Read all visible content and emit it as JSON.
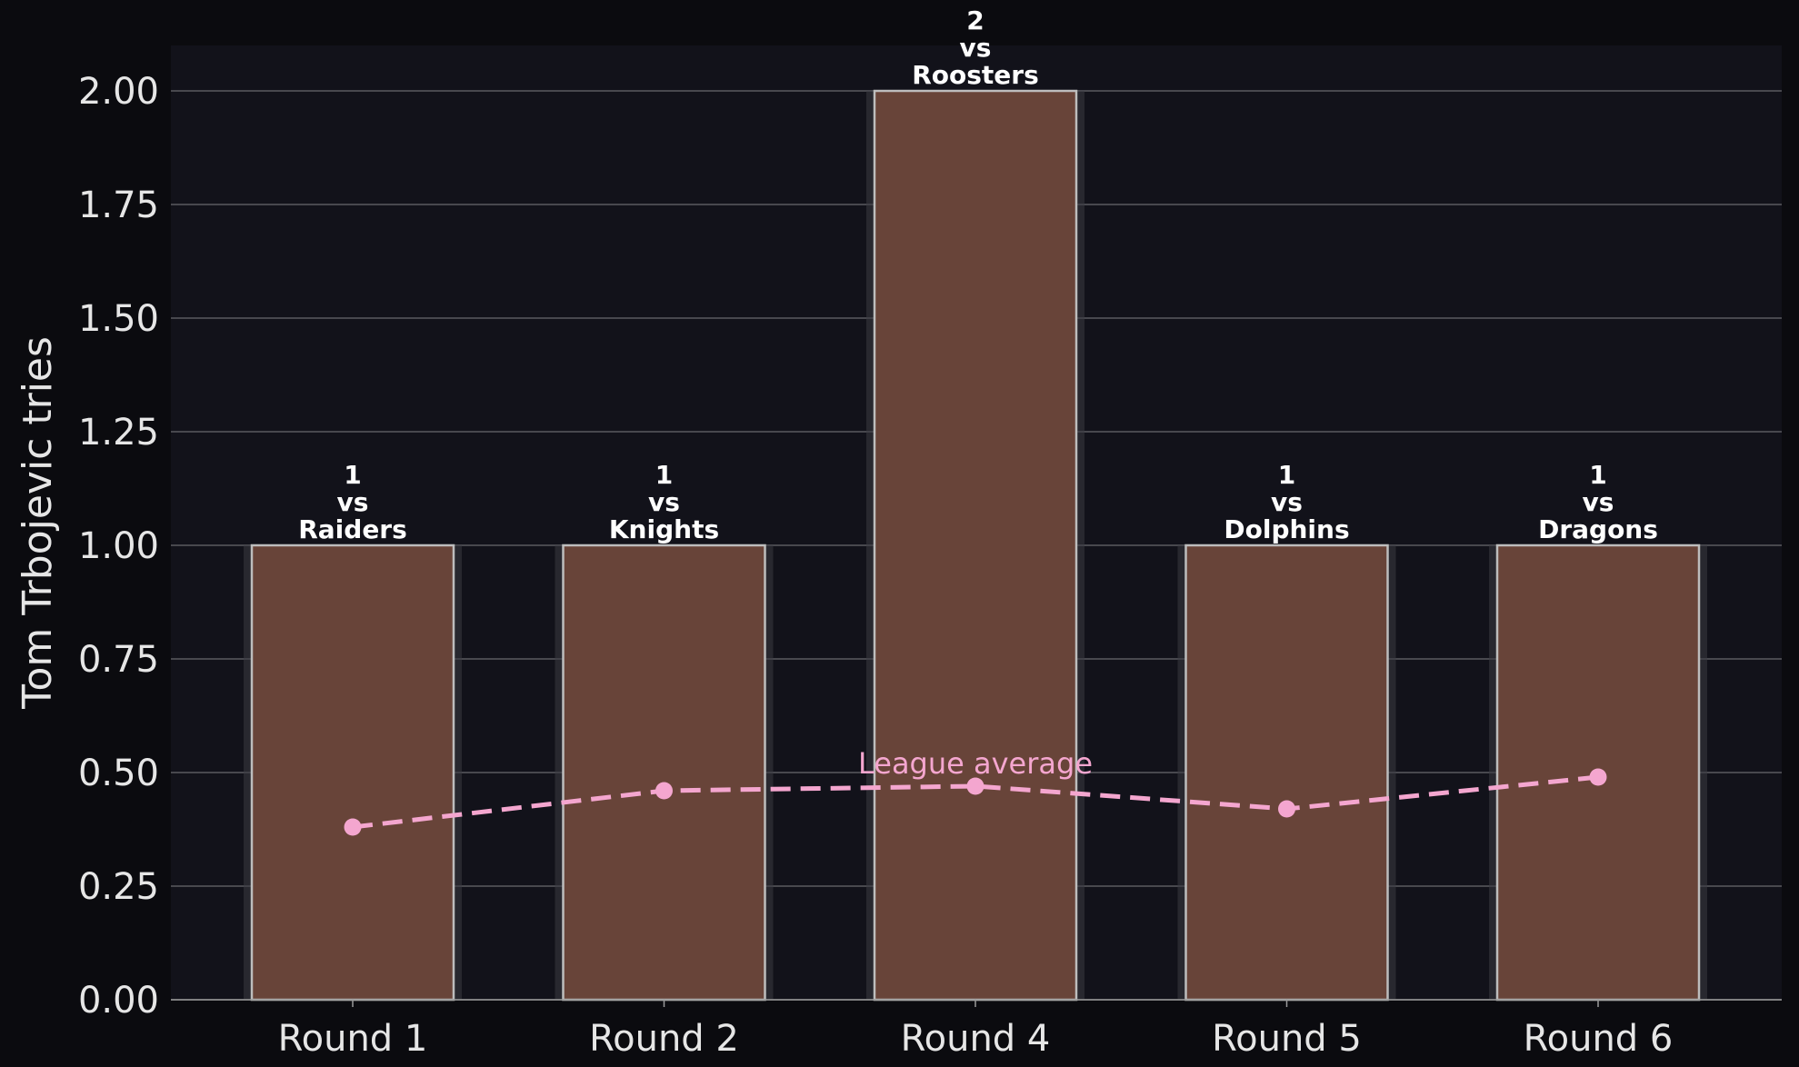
{
  "chart_data": {
    "type": "bar",
    "categories": [
      "Round 1",
      "Round 2",
      "Round 4",
      "Round 5",
      "Round 6"
    ],
    "values": [
      1,
      1,
      2,
      1,
      1
    ],
    "opponents": [
      "Raiders",
      "Knights",
      "Roosters",
      "Dolphins",
      "Dragons"
    ],
    "vs_text": "vs",
    "series": [
      {
        "name": "",
        "values": [
          1,
          1,
          2,
          1,
          1
        ]
      },
      {
        "name": "",
        "values": [
          0.38,
          0.46,
          0.47,
          0.42,
          0.49
        ]
      }
    ],
    "average_label": "League average",
    "title": "",
    "xlabel": "",
    "ylabel": "Tom Trbojevic tries",
    "ylim": [
      0,
      2.1
    ],
    "yticks": [
      "0.00",
      "0.25",
      "0.50",
      "0.75",
      "1.00",
      "1.25",
      "1.50",
      "1.75",
      "2.00"
    ],
    "grid": "horizontal",
    "colors": {
      "background": "#0b0b0f",
      "plot_background": "#12121a",
      "bar_fill": "#684439",
      "bar_edge": "#bdbdbd",
      "line": "#f4a6cf",
      "grid": "#5a5a60",
      "text": "#e6e6e6"
    }
  }
}
